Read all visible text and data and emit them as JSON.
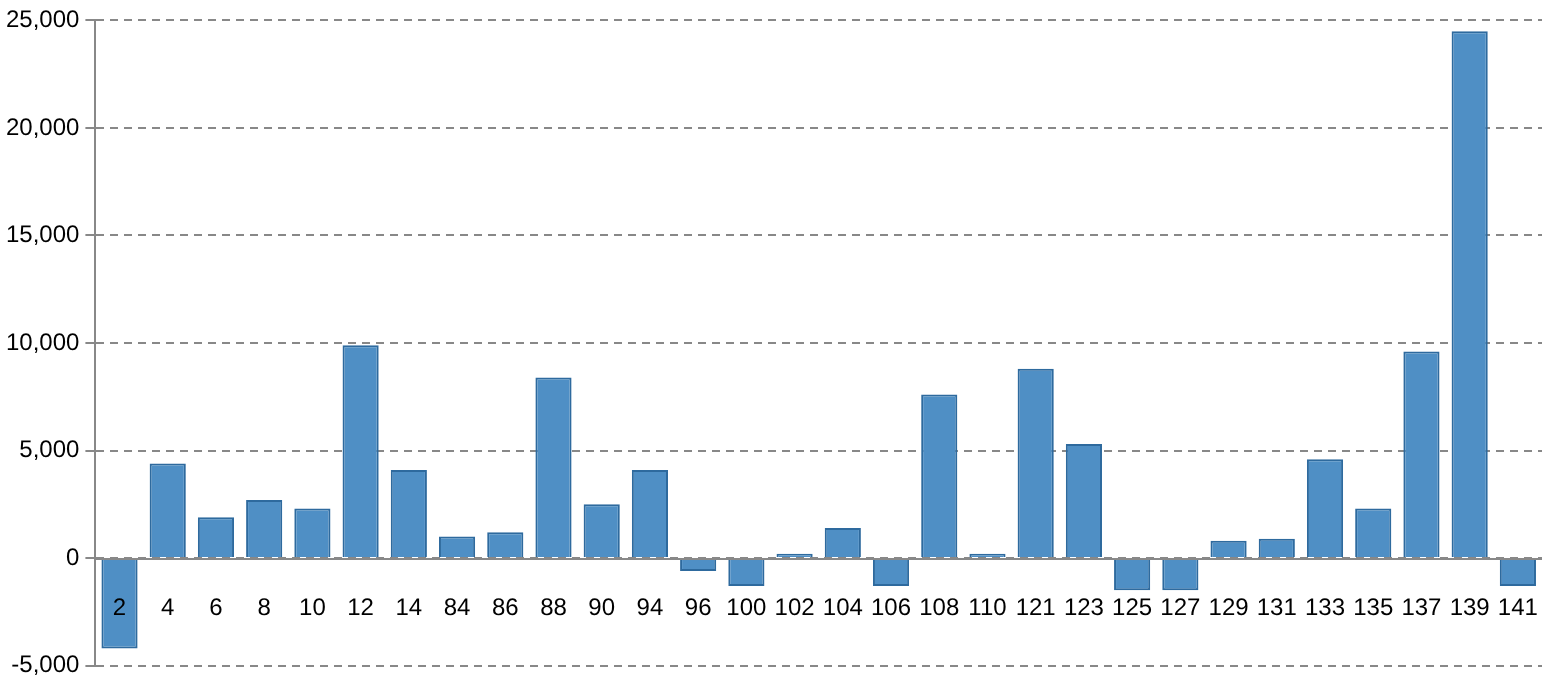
{
  "chart_data": {
    "type": "bar",
    "categories": [
      "2",
      "4",
      "6",
      "8",
      "10",
      "12",
      "14",
      "84",
      "86",
      "88",
      "90",
      "94",
      "96",
      "100",
      "102",
      "104",
      "106",
      "108",
      "110",
      "121",
      "123",
      "125",
      "127",
      "129",
      "131",
      "133",
      "135",
      "137",
      "139",
      "141"
    ],
    "values": [
      -4200,
      4400,
      1900,
      2700,
      2300,
      9900,
      4100,
      1000,
      1200,
      8400,
      2500,
      4100,
      -600,
      -1300,
      200,
      1400,
      -1300,
      7600,
      200,
      8800,
      5300,
      -1500,
      -1500,
      800,
      900,
      4600,
      2300,
      9600,
      24500,
      -1300
    ],
    "color": "#4f8fc5",
    "ylim": [
      -5000,
      25000
    ],
    "yticks": [
      {
        "value": -5000,
        "label": "-5,000"
      },
      0,
      {
        "value": 5000,
        "label": "5,000"
      },
      {
        "value": 10000,
        "label": "10,000"
      },
      {
        "value": 15000,
        "label": "15,000"
      },
      {
        "value": 20000,
        "label": "20,000"
      },
      {
        "value": 25000,
        "label": "25,000"
      }
    ],
    "grid": "y",
    "legend": false
  }
}
